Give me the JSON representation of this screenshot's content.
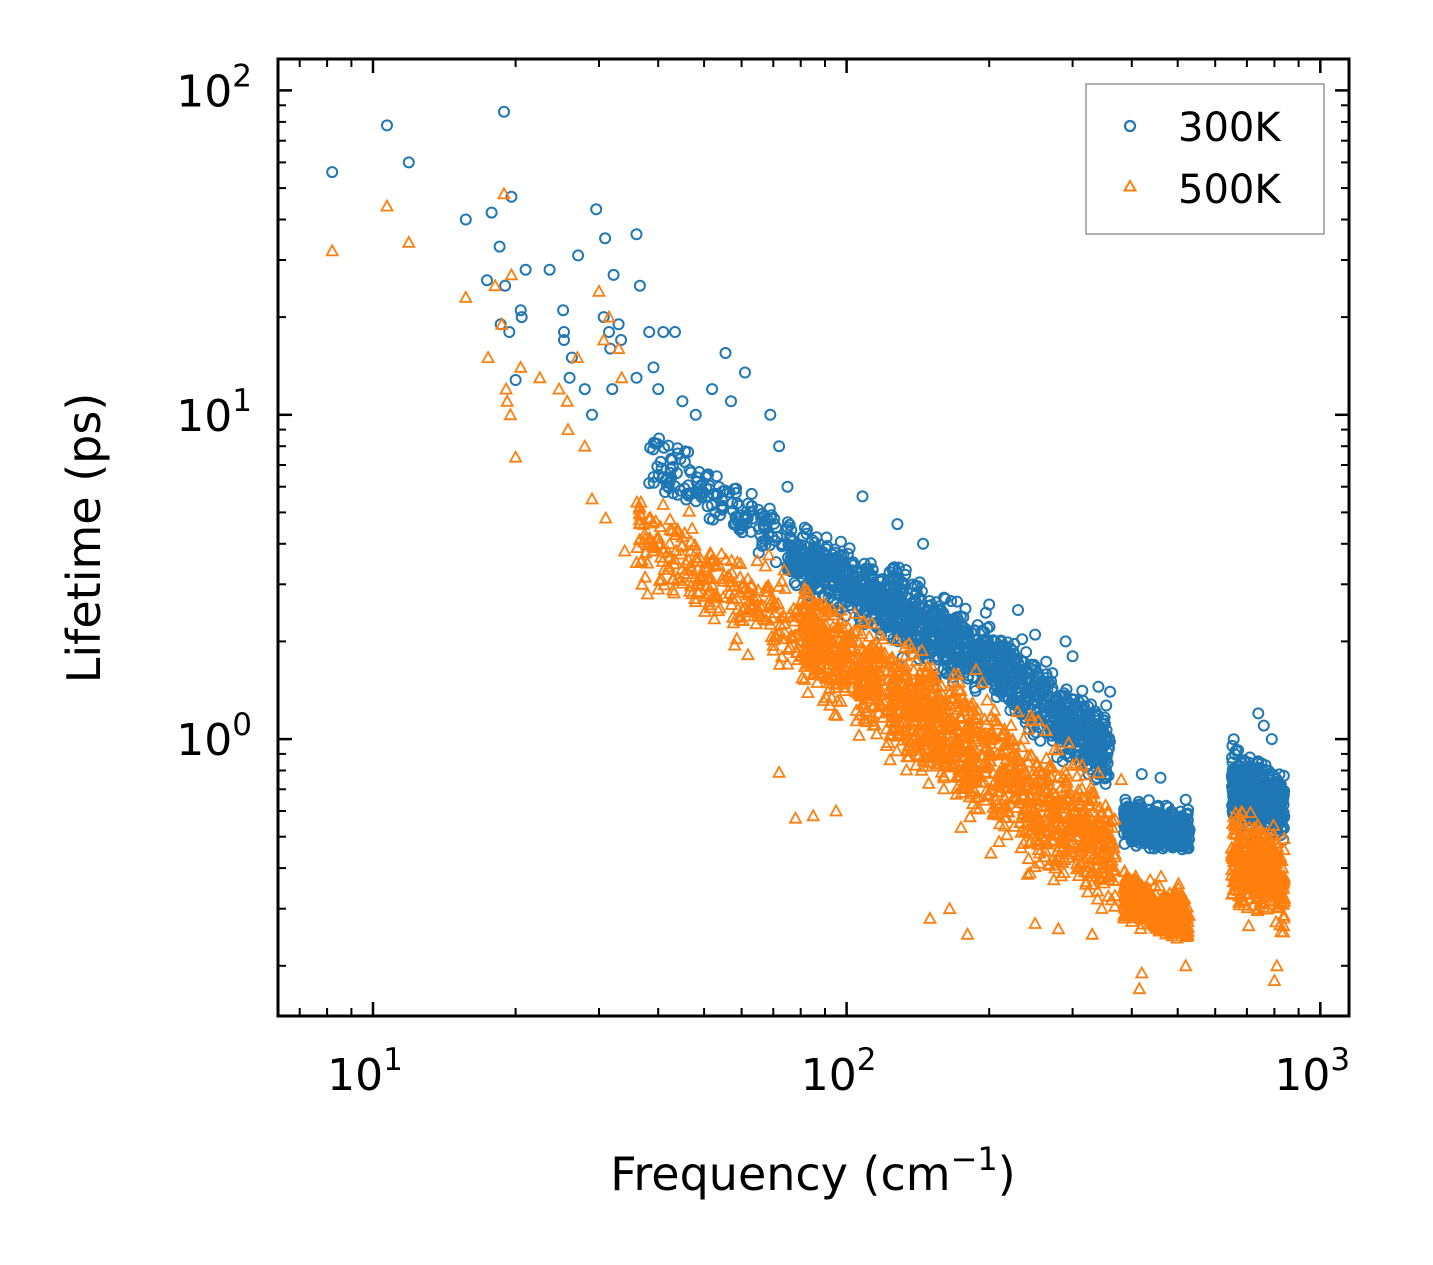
{
  "chart_data": {
    "type": "scatter",
    "xscale": "log",
    "yscale": "log",
    "xlim": [
      6.3,
      1150
    ],
    "ylim": [
      0.14,
      125
    ],
    "xlabel": {
      "text": "Frequency (cm",
      "sup": "−1",
      "suffix": ")"
    },
    "ylabel": "Lifetime (ps)",
    "xticks": [
      {
        "value": 10,
        "base": "10",
        "exp": "1"
      },
      {
        "value": 100,
        "base": "10",
        "exp": "2"
      },
      {
        "value": 1000,
        "base": "10",
        "exp": "3"
      }
    ],
    "yticks": [
      {
        "value": 1,
        "base": "10",
        "exp": "0"
      },
      {
        "value": 10,
        "base": "10",
        "exp": "1"
      },
      {
        "value": 100,
        "base": "10",
        "exp": "2"
      }
    ],
    "legend_position": "top-right",
    "series": [
      {
        "name": "300K",
        "color": "#1f77b4",
        "marker": "circle-open",
        "points": [
          [
            8.2,
            56
          ],
          [
            10.7,
            78
          ],
          [
            11.9,
            60
          ],
          [
            18.9,
            86
          ],
          [
            15.7,
            40
          ],
          [
            17.8,
            42
          ],
          [
            18.5,
            33
          ],
          [
            19.6,
            47
          ],
          [
            21.0,
            28
          ],
          [
            23.6,
            28
          ],
          [
            27.1,
            31
          ],
          [
            29.6,
            43
          ],
          [
            30.9,
            35
          ],
          [
            32.2,
            27
          ],
          [
            36.0,
            36
          ],
          [
            36.6,
            25
          ],
          [
            17.4,
            26
          ],
          [
            19.0,
            25
          ],
          [
            20.5,
            21
          ],
          [
            20.6,
            20
          ],
          [
            18.6,
            19
          ],
          [
            19.4,
            18
          ],
          [
            25.2,
            21
          ],
          [
            25.3,
            18
          ],
          [
            25.3,
            17
          ],
          [
            26.3,
            15
          ],
          [
            30.7,
            20
          ],
          [
            31.5,
            18
          ],
          [
            31.7,
            16
          ],
          [
            33.0,
            19
          ],
          [
            33.4,
            17
          ],
          [
            38.3,
            18
          ],
          [
            39.1,
            14
          ],
          [
            41.0,
            18
          ],
          [
            43.4,
            18
          ],
          [
            55.5,
            15.5
          ],
          [
            61.0,
            13.5
          ],
          [
            20.0,
            12.8
          ],
          [
            26.0,
            13.0
          ],
          [
            28.0,
            12.0
          ],
          [
            29.0,
            10.0
          ],
          [
            32.0,
            12.0
          ],
          [
            36.0,
            13.0
          ],
          [
            40.0,
            12.0
          ],
          [
            45.0,
            11.0
          ],
          [
            48.0,
            10.0
          ],
          [
            52.0,
            12.0
          ],
          [
            57.0,
            11.0
          ],
          [
            69.0,
            10.0
          ],
          [
            72.0,
            8.0
          ],
          [
            75.0,
            6.0
          ],
          [
            108.0,
            5.6
          ],
          [
            128.0,
            4.6
          ],
          [
            145.0,
            4.0
          ],
          [
            200.0,
            2.6
          ],
          [
            230.0,
            2.5
          ],
          [
            250.0,
            2.1
          ],
          [
            290.0,
            2.0
          ],
          [
            300.0,
            1.8
          ],
          [
            340.0,
            1.45
          ],
          [
            360.0,
            1.4
          ],
          [
            420.0,
            0.78
          ],
          [
            460.0,
            0.76
          ],
          [
            520.0,
            0.65
          ],
          [
            740.0,
            1.2
          ],
          [
            760.0,
            1.1
          ],
          [
            790.0,
            1.0
          ]
        ],
        "bands": [
          {
            "f": [
              38,
              75
            ],
            "top": [
              9.5,
              5.5
            ],
            "bottom": [
              5.5,
              3.2
            ],
            "n": 160
          },
          {
            "f": [
              75,
              130
            ],
            "top": [
              5.0,
              3.6
            ],
            "bottom": [
              2.8,
              1.8
            ],
            "n": 480
          },
          {
            "f": [
              130,
              210
            ],
            "top": [
              3.6,
              2.4
            ],
            "bottom": [
              1.7,
              1.15
            ],
            "n": 420
          },
          {
            "f": [
              210,
              300
            ],
            "top": [
              2.4,
              1.6
            ],
            "bottom": [
              1.15,
              0.75
            ],
            "n": 300
          },
          {
            "f": [
              300,
              360
            ],
            "top": [
              1.6,
              1.35
            ],
            "bottom": [
              0.78,
              0.62
            ],
            "n": 180
          },
          {
            "f": [
              385,
              530
            ],
            "top": [
              0.7,
              0.63
            ],
            "bottom": [
              0.45,
              0.42
            ],
            "n": 450
          },
          {
            "f": [
              650,
              840
            ],
            "top": [
              1.05,
              0.82
            ],
            "bottom": [
              0.5,
              0.45
            ],
            "n": 420
          }
        ]
      },
      {
        "name": "500K",
        "color": "#ff7f0e",
        "marker": "triangle-open",
        "points": [
          [
            8.2,
            32
          ],
          [
            10.7,
            44
          ],
          [
            11.9,
            34
          ],
          [
            18.9,
            48
          ],
          [
            15.7,
            23
          ],
          [
            17.5,
            15
          ],
          [
            18.1,
            25
          ],
          [
            18.7,
            19
          ],
          [
            19.6,
            27
          ],
          [
            19.1,
            12
          ],
          [
            19.2,
            11
          ],
          [
            19.5,
            10
          ],
          [
            20.0,
            7.4
          ],
          [
            20.5,
            14
          ],
          [
            22.5,
            13
          ],
          [
            24.7,
            12
          ],
          [
            25.7,
            11
          ],
          [
            25.8,
            9
          ],
          [
            27.0,
            15
          ],
          [
            28.0,
            8.0
          ],
          [
            30.0,
            24
          ],
          [
            30.7,
            17
          ],
          [
            31.5,
            20
          ],
          [
            33.0,
            16
          ],
          [
            33.5,
            13
          ],
          [
            29.0,
            5.5
          ],
          [
            31.0,
            4.8
          ],
          [
            34.0,
            3.8
          ],
          [
            36.0,
            3.5
          ],
          [
            37.0,
            3.0
          ],
          [
            38.0,
            2.8
          ],
          [
            40.0,
            2.9
          ],
          [
            72.0,
            0.79
          ],
          [
            78.0,
            0.57
          ],
          [
            85.0,
            0.58
          ],
          [
            95.0,
            0.6
          ],
          [
            150.0,
            0.28
          ],
          [
            165.0,
            0.3
          ],
          [
            180.0,
            0.25
          ],
          [
            250.0,
            0.27
          ],
          [
            280.0,
            0.26
          ],
          [
            330.0,
            0.25
          ],
          [
            380.0,
            0.75
          ],
          [
            415.0,
            0.17
          ],
          [
            420.0,
            0.19
          ],
          [
            520.0,
            0.2
          ],
          [
            800.0,
            0.18
          ],
          [
            810.0,
            0.2
          ]
        ],
        "bands": [
          {
            "f": [
              36,
              80
            ],
            "top": [
              6.5,
              3.5
            ],
            "bottom": [
              3.0,
              1.3
            ],
            "n": 260
          },
          {
            "f": [
              80,
              130
            ],
            "top": [
              3.5,
              2.4
            ],
            "bottom": [
              1.3,
              0.75
            ],
            "n": 450
          },
          {
            "f": [
              130,
              200
            ],
            "top": [
              2.4,
              1.6
            ],
            "bottom": [
              0.75,
              0.42
            ],
            "n": 450
          },
          {
            "f": [
              200,
              300
            ],
            "top": [
              1.6,
              1.1
            ],
            "bottom": [
              0.42,
              0.28
            ],
            "n": 350
          },
          {
            "f": [
              300,
              370
            ],
            "top": [
              1.1,
              0.75
            ],
            "bottom": [
              0.3,
              0.24
            ],
            "n": 200
          },
          {
            "f": [
              385,
              530
            ],
            "top": [
              0.42,
              0.36
            ],
            "bottom": [
              0.26,
              0.21
            ],
            "n": 400
          },
          {
            "f": [
              650,
              840
            ],
            "top": [
              0.7,
              0.55
            ],
            "bottom": [
              0.27,
              0.24
            ],
            "n": 380
          }
        ]
      }
    ]
  }
}
